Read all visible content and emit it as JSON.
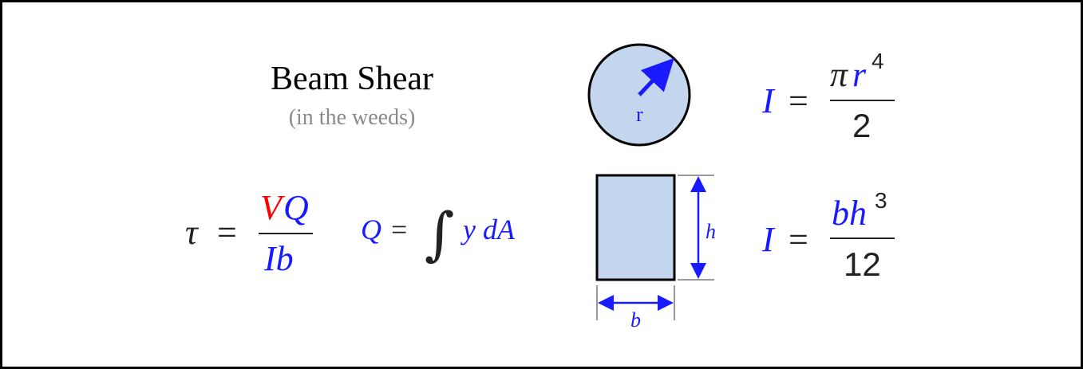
{
  "title": "Beam Shear",
  "subtitle": "(in the weeds)",
  "colors": {
    "blue": "#1a1aff",
    "red": "#ff0000",
    "shape_fill": "#c3d6ee",
    "text": "#222222"
  },
  "shear_formula": {
    "lhs": "τ",
    "eq": "=",
    "num_v": "V",
    "num_q": "Q",
    "den": "Ib"
  },
  "q_formula": {
    "lhs": "Q",
    "eq": "=",
    "integral": "∫",
    "integrand": "y dA"
  },
  "circle": {
    "radius_label": "r"
  },
  "circle_inertia": {
    "lhs": "I",
    "eq": "=",
    "num_pi": "π",
    "num_r": "r",
    "num_exp": "4",
    "den": "2"
  },
  "rectangle": {
    "height_label": "h",
    "width_label": "b"
  },
  "rect_inertia": {
    "lhs": "I",
    "eq": "=",
    "num": "bh",
    "num_exp": "3",
    "den": "12"
  }
}
